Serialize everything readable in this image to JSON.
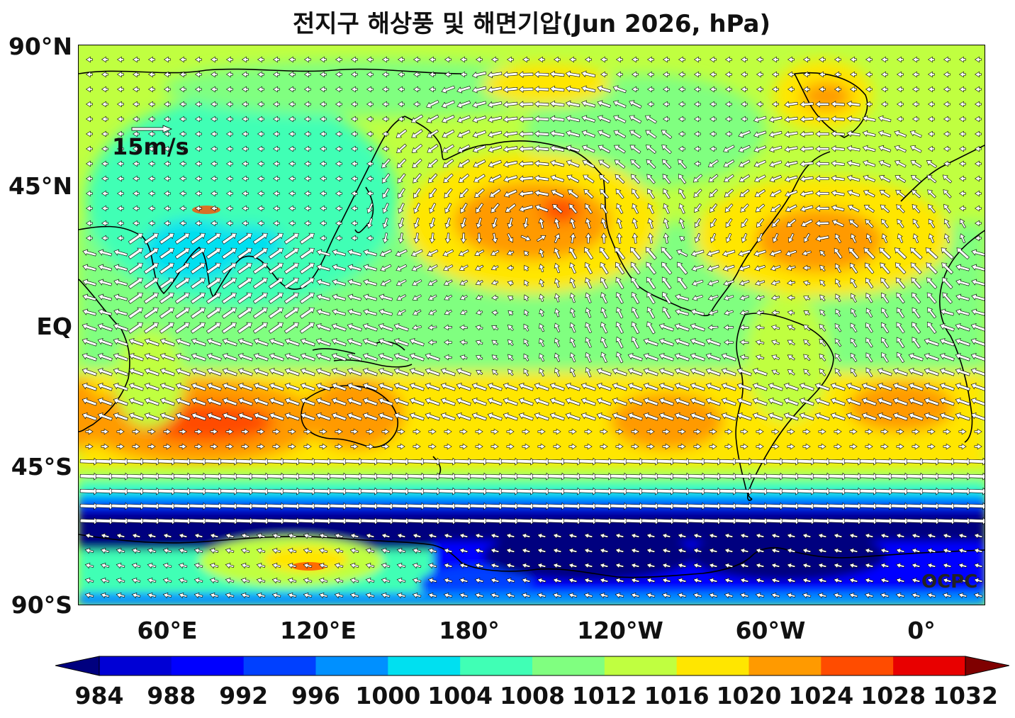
{
  "title": "전지구 해상풍 및 해면기압(Jun 2026, hPa)",
  "lat_labels": [
    "90°N",
    "45°N",
    "EQ",
    "45°S",
    "90°S"
  ],
  "lon_labels": [
    "60°E",
    "120°E",
    "180°",
    "120°W",
    "60°W",
    "0°"
  ],
  "wind_scale_label": "15m/s",
  "credit": "OCPC",
  "colorbar": {
    "levels": [
      "984",
      "988",
      "992",
      "996",
      "1000",
      "1004",
      "1008",
      "1012",
      "1016",
      "1020",
      "1024",
      "1028",
      "1032"
    ],
    "colors": [
      "#00007f",
      "#0000d5",
      "#0000ff",
      "#0040ff",
      "#0090ff",
      "#00e0f0",
      "#40ffb5",
      "#80ff80",
      "#c0ff40",
      "#ffe600",
      "#ff9a00",
      "#ff4c00",
      "#e80000",
      "#7f0000"
    ]
  },
  "map_colors": {
    "land_outline": "#000000",
    "arrow_fill": "#ffffff",
    "arrow_stroke": "#000000"
  }
}
